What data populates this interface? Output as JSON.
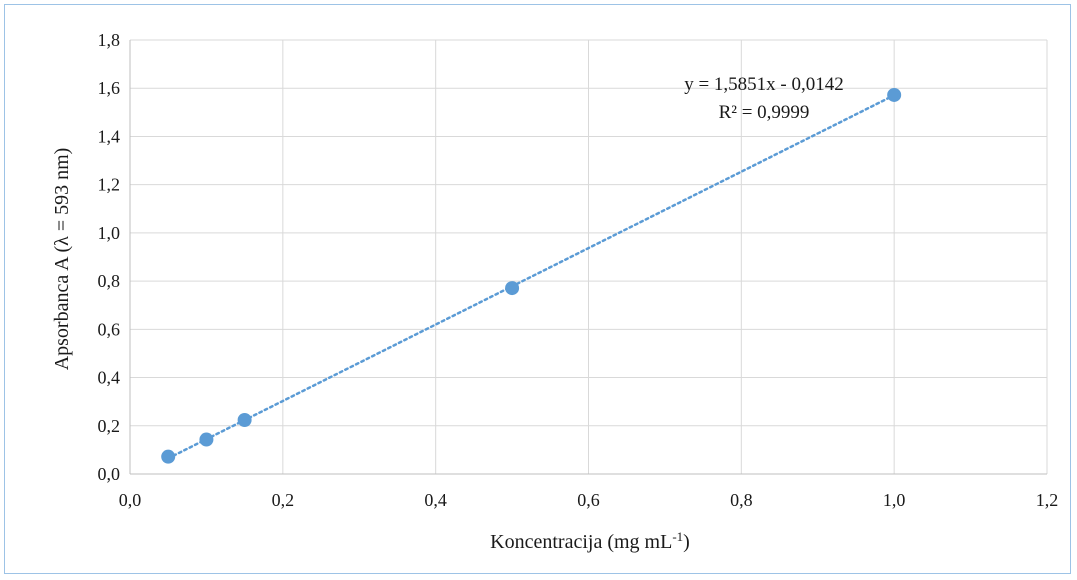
{
  "chart_data": {
    "type": "scatter",
    "xlabel": "Koncentracija (mg mL",
    "xlabel_sup": "-1",
    "xlabel_close": ")",
    "ylabel": "Apsorbanca A (λ = 593 nm)",
    "xlim": [
      0,
      1.2
    ],
    "ylim": [
      0,
      1.8
    ],
    "x_ticks": [
      0,
      0.2,
      0.4,
      0.6,
      0.8,
      1.0,
      1.2
    ],
    "y_ticks": [
      0,
      0.2,
      0.4,
      0.6,
      0.8,
      1.0,
      1.2,
      1.4,
      1.6,
      1.8
    ],
    "x_tick_labels": [
      "0,0",
      "0,2",
      "0,4",
      "0,6",
      "0,8",
      "1,0",
      "1,2"
    ],
    "y_tick_labels": [
      "0,0",
      "0,2",
      "0,4",
      "0,6",
      "0,8",
      "1,0",
      "1,2",
      "1,4",
      "1,6",
      "1,8"
    ],
    "grid": true,
    "series": [
      {
        "x": [
          0.05,
          0.1,
          0.15,
          0.5,
          1.0
        ],
        "y": [
          0.072,
          0.143,
          0.224,
          0.771,
          1.572
        ]
      }
    ],
    "trendline": {
      "type": "linear",
      "slope": 1.5851,
      "intercept": -0.0142,
      "equation": "y = 1,5851x - 0,0142",
      "r2": "R² = 0,9999"
    },
    "colors": {
      "marker": "#5b9bd5",
      "trendline": "#5b9bd5",
      "grid": "#d9d9d9",
      "frame": "#9dc3e6"
    }
  }
}
